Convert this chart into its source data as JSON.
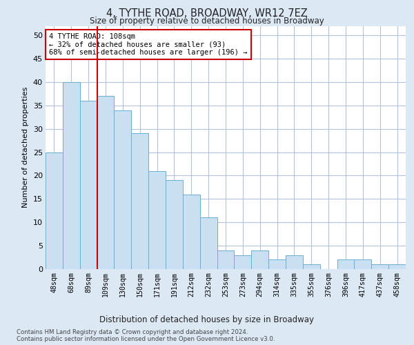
{
  "title": "4, TYTHE ROAD, BROADWAY, WR12 7EZ",
  "subtitle": "Size of property relative to detached houses in Broadway",
  "xlabel": "Distribution of detached houses by size in Broadway",
  "ylabel": "Number of detached properties",
  "categories": [
    "48sqm",
    "68sqm",
    "89sqm",
    "109sqm",
    "130sqm",
    "150sqm",
    "171sqm",
    "191sqm",
    "212sqm",
    "232sqm",
    "253sqm",
    "273sqm",
    "294sqm",
    "314sqm",
    "335sqm",
    "355sqm",
    "376sqm",
    "396sqm",
    "417sqm",
    "437sqm",
    "458sqm"
  ],
  "values": [
    25,
    40,
    36,
    37,
    34,
    29,
    21,
    19,
    16,
    11,
    4,
    3,
    4,
    2,
    3,
    1,
    0,
    2,
    2,
    1,
    1
  ],
  "bar_color": "#c9dff2",
  "bar_edge_color": "#6aaed6",
  "highlight_bar_index": 3,
  "highlight_line_color": "#cc0000",
  "annotation_text": "4 TYTHE ROAD: 108sqm\n← 32% of detached houses are smaller (93)\n68% of semi-detached houses are larger (196) →",
  "annotation_box_color": "#ffffff",
  "annotation_box_edge_color": "#cc0000",
  "ylim": [
    0,
    52
  ],
  "yticks": [
    0,
    5,
    10,
    15,
    20,
    25,
    30,
    35,
    40,
    45,
    50
  ],
  "grid_color": "#b0c4de",
  "plot_bg_color": "#ffffff",
  "fig_bg_color": "#dce9f5",
  "footnote1": "Contains HM Land Registry data © Crown copyright and database right 2024.",
  "footnote2": "Contains public sector information licensed under the Open Government Licence v3.0."
}
